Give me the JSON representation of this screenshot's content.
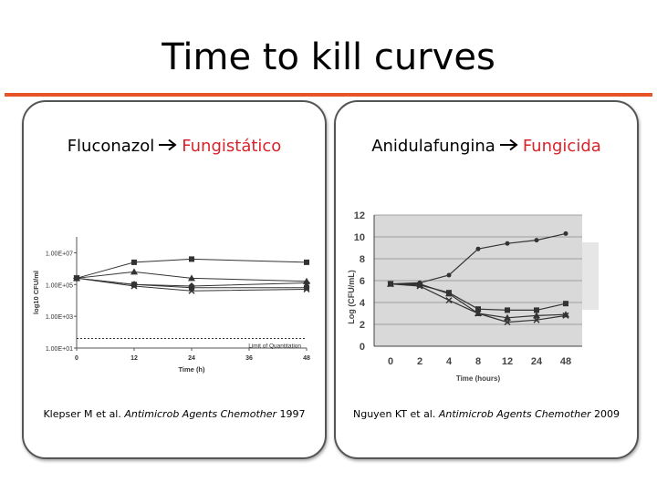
{
  "slide": {
    "title": "Time to kill curves",
    "colors": {
      "accent_rule": "#e8532a",
      "verdict_text": "#d8232a",
      "plot_bg_right": "#d9d9d9"
    }
  },
  "panels": {
    "left": {
      "drug": "Fluconazol",
      "arrow_icon": "right-arrow-icon",
      "verdict": "Fungistático",
      "citation_authors": "Klepser M et al.",
      "citation_journal": "Antimicrob Agents Chemother",
      "citation_year": "1997"
    },
    "right": {
      "drug": "Anidulafungina",
      "arrow_icon": "right-arrow-icon",
      "verdict": "Fungicida",
      "citation_authors": "Nguyen KT et al.",
      "citation_journal": "Antimicrob Agents Chemother",
      "citation_year": "2009"
    }
  },
  "chart_data": [
    {
      "type": "line",
      "xlabel": "Time (h)",
      "ylabel": "log10 CFU/ml",
      "x_ticks": [
        0,
        12,
        24,
        36,
        48
      ],
      "y_ticks": [
        "1.00E+01",
        "1.00E+03",
        "1.00E+05",
        "1.00E+07"
      ],
      "y_scale": "log",
      "xlim": [
        0,
        48
      ],
      "ylim_log10": [
        1,
        8
      ],
      "grid": false,
      "reference_line": {
        "label": "Limit of Quantitation",
        "y_log10": 1.6
      },
      "x": [
        0,
        12,
        24,
        48
      ],
      "series": [
        {
          "values_log10": [
            5.4,
            6.4,
            6.6,
            6.4
          ]
        },
        {
          "values_log10": [
            5.4,
            5.8,
            5.4,
            5.2
          ]
        },
        {
          "values_log10": [
            5.4,
            5.0,
            4.9,
            5.1
          ]
        },
        {
          "values_log10": [
            5.4,
            5.0,
            4.8,
            4.8
          ]
        },
        {
          "values_log10": [
            5.4,
            4.9,
            4.6,
            4.7
          ]
        }
      ]
    },
    {
      "type": "line",
      "xlabel": "Time (hours)",
      "ylabel": "Log (CFU/mL)",
      "categories": [
        "0",
        "2",
        "4",
        "8",
        "12",
        "24",
        "48"
      ],
      "y_ticks": [
        0,
        2,
        4,
        6,
        8,
        10,
        12
      ],
      "ylim": [
        0,
        12
      ],
      "grid": true,
      "series": [
        {
          "values": [
            5.7,
            5.8,
            6.5,
            8.9,
            9.4,
            9.7,
            10.3
          ]
        },
        {
          "values": [
            5.7,
            5.6,
            4.9,
            3.4,
            3.3,
            3.3,
            3.9
          ]
        },
        {
          "values": [
            5.7,
            5.7,
            4.8,
            3.0,
            2.6,
            2.8,
            2.9
          ]
        },
        {
          "values": [
            5.7,
            5.5,
            4.2,
            3.0,
            2.2,
            2.4,
            2.8
          ]
        }
      ]
    }
  ]
}
